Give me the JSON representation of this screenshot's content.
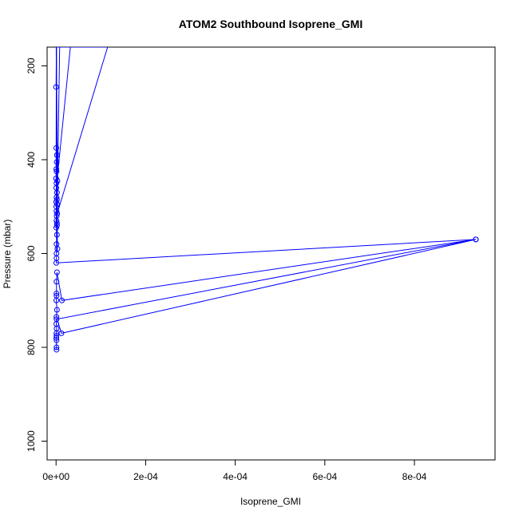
{
  "chart_data": {
    "type": "line",
    "title": "ATOM2 Southbound Isoprene_GMI",
    "xlabel": "Isoprene_GMI",
    "ylabel": "Pressure (mbar)",
    "xlim": [
      -2e-05,
      0.00098
    ],
    "ylim": [
      1040,
      160
    ],
    "y_reversed": true,
    "grid": false,
    "x_ticks": [
      {
        "value": 0,
        "label": "0e+00"
      },
      {
        "value": 0.0002,
        "label": "2e-04"
      },
      {
        "value": 0.0004,
        "label": "4e-04"
      },
      {
        "value": 0.0006,
        "label": "6e-04"
      },
      {
        "value": 0.0008,
        "label": "8e-04"
      }
    ],
    "y_ticks": [
      {
        "value": 200,
        "label": "200"
      },
      {
        "value": 400,
        "label": "400"
      },
      {
        "value": 600,
        "label": "600"
      },
      {
        "value": 800,
        "label": "800"
      },
      {
        "value": 1000,
        "label": "1000"
      }
    ],
    "series": [
      {
        "color": "#0000ff",
        "x": [
          0,
          8e-07,
          5e-07,
          1e-06,
          2e-06,
          1e-06,
          1.5e-06,
          5e-07,
          1e-06,
          1.2e-06,
          0.0,
          7e-07,
          3e-06,
          9e-07,
          4e-07,
          3.2e-05,
          5e-07,
          2e-06,
          6e-07,
          1e-06,
          2e-06,
          1.1e-06,
          3e-07,
          2.5e-06,
          1e-06,
          5e-07,
          1e-06,
          8e-07,
          0.000115,
          2.5e-06,
          1.3e-06,
          6e-07,
          1e-06,
          2e-06,
          4e-07,
          8e-06,
          2e-06,
          5e-07,
          1e-06,
          2e-06,
          1e-06,
          5e-07,
          3e-06,
          1e-06,
          1.15e-06,
          1e-06,
          5e-07,
          0.000937,
          1.3e-05,
          2e-06,
          9e-07,
          1e-06,
          1e-06,
          5e-07,
          2e-06,
          8e-07,
          1.2e-05,
          0.000937,
          1e-06,
          5e-07,
          1.2e-06,
          8e-07,
          1e-06,
          5e-07,
          1e-06,
          1e-06,
          1e-06
        ],
        "y": [
          245,
          160,
          375,
          160,
          390,
          160,
          405,
          420,
          160,
          425,
          440,
          160,
          445,
          450,
          160,
          160,
          460,
          470,
          160,
          480,
          485,
          160,
          490,
          495,
          160,
          500,
          510,
          160,
          160,
          515,
          520,
          160,
          530,
          535,
          160,
          160,
          540,
          545,
          160,
          560,
          580,
          160,
          590,
          600,
          160,
          610,
          620,
          570,
          700,
          640,
          660,
          685,
          690,
          700,
          720,
          735,
          770,
          570,
          740,
          750,
          760,
          770,
          775,
          780,
          785,
          800,
          805
        ]
      }
    ]
  }
}
